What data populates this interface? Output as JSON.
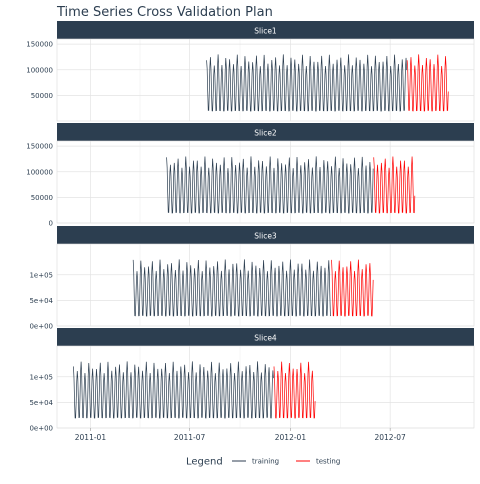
{
  "chart_data": {
    "type": "line",
    "title": "Time Series Cross Validation Plan",
    "xlabel": "",
    "ylabel": "",
    "x_ticks": [
      "2011-01",
      "2011-07",
      "2012-01",
      "2012-07"
    ],
    "x_range": [
      "2010-11-01",
      "2012-12-01"
    ],
    "legend": {
      "title": "Legend",
      "position": "bottom",
      "items": [
        {
          "label": "training",
          "color": "#2c3e50"
        },
        {
          "label": "testing",
          "color": "#ff0000"
        }
      ]
    },
    "grid": true,
    "colors": {
      "strip_bg": "#2c3e50",
      "strip_text": "#ffffff",
      "training": "#2c3e50",
      "testing": "#ff0000"
    },
    "series_shape": {
      "cycle_days": 7,
      "peak": 130000,
      "trough": 15000
    },
    "panels": [
      {
        "name": "Slice1",
        "y_ticks": [
          "50000",
          "100000",
          "150000"
        ],
        "y_tick_values": [
          50000,
          100000,
          150000
        ],
        "ylim": [
          0,
          160000
        ],
        "training": {
          "start": "2011-08-01",
          "end": "2012-07-31"
        },
        "testing": {
          "start": "2012-08-01",
          "end": "2012-10-15"
        }
      },
      {
        "name": "Slice2",
        "y_ticks": [
          "0",
          "50000",
          "100000",
          "150000"
        ],
        "y_tick_values": [
          0,
          50000,
          100000,
          150000
        ],
        "ylim": [
          0,
          160000
        ],
        "training": {
          "start": "2011-05-20",
          "end": "2012-05-31"
        },
        "testing": {
          "start": "2012-06-01",
          "end": "2012-08-15"
        }
      },
      {
        "name": "Slice3",
        "y_ticks": [
          "0e+00",
          "5e+04",
          "1e+05"
        ],
        "y_tick_values": [
          0,
          50000,
          100000
        ],
        "ylim": [
          0,
          160000
        ],
        "training": {
          "start": "2011-03-20",
          "end": "2012-03-15"
        },
        "testing": {
          "start": "2012-03-16",
          "end": "2012-05-31"
        }
      },
      {
        "name": "Slice4",
        "y_ticks": [
          "0e+00",
          "5e+04",
          "1e+05"
        ],
        "y_tick_values": [
          0,
          50000,
          100000
        ],
        "ylim": [
          0,
          160000
        ],
        "training": {
          "start": "2010-12-01",
          "end": "2011-12-01"
        },
        "testing": {
          "start": "2011-12-02",
          "end": "2012-02-15"
        }
      }
    ]
  }
}
